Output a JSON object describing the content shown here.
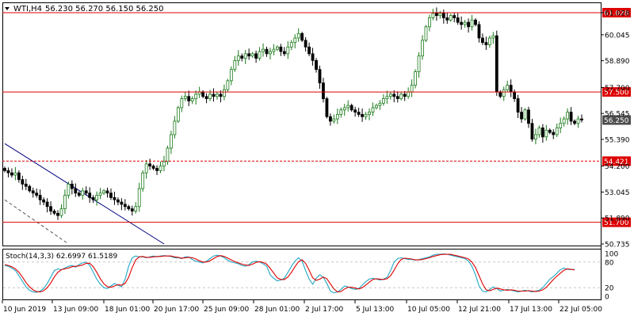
{
  "header": {
    "symbol_label": "WTI,H4",
    "ohlc_label": "56.230 56.270 56.150 56.250",
    "menu_icon": "triangle-down-icon"
  },
  "colors": {
    "background": "#ffffff",
    "grid_dash": "#c8c8c8",
    "candle_bull": "#1a7a1a",
    "candle_bear": "#000000",
    "candle_bull_fill": "#ffffff",
    "level_line": "#dd0000",
    "trend_line": "#000080",
    "price_tag_bg": "#4d4d4d",
    "level_tag_bg": "#dd0000",
    "stoch_main": "#21a8c4",
    "stoch_signal": "#dd0000"
  },
  "chart_data": [
    {
      "type": "candlestick",
      "title": "WTI,H4",
      "ylim": [
        50.735,
        61.2
      ],
      "y_ticks": [
        "61.028",
        "60.045",
        "58.890",
        "57.700",
        "56.545",
        "55.390",
        "54.200",
        "53.045",
        "51.890",
        "50.735"
      ],
      "x_ticks": [
        "10 Jun 2019",
        "13 Jun 09:00",
        "18 Jun 01:00",
        "20 Jun 17:00",
        "25 Jun 09:00",
        "28 Jun 01:00",
        "2 Jul 17:00",
        "5 Jul 13:00",
        "10 Jul 05:00",
        "12 Jul 21:00",
        "17 Jul 13:00",
        "22 Jul 05:00"
      ],
      "current_price": "56.250",
      "horizontal_levels": [
        {
          "label": "61.028",
          "value": 61.028,
          "style": "solid"
        },
        {
          "label": "57.500",
          "value": 57.5,
          "style": "solid"
        },
        {
          "label": "54.421",
          "value": 54.421,
          "style": "dashed"
        },
        {
          "label": "51.700",
          "value": 51.7,
          "style": "solid"
        }
      ],
      "trend_lines": [
        {
          "style": "solid",
          "from": {
            "bar": 0,
            "price": 55.2
          },
          "to": {
            "bar": 45,
            "price": 50.735
          }
        },
        {
          "style": "dashed",
          "from": {
            "bar": 0,
            "price": 52.7
          },
          "to": {
            "bar": 18,
            "price": 50.735
          }
        }
      ],
      "closes": [
        54.0,
        53.9,
        53.8,
        53.9,
        53.6,
        53.4,
        53.3,
        53.1,
        53.0,
        52.9,
        52.7,
        52.6,
        52.4,
        52.2,
        52.1,
        52.0,
        52.3,
        52.9,
        53.4,
        53.2,
        53.0,
        52.9,
        53.1,
        53.0,
        52.8,
        52.7,
        52.9,
        53.0,
        53.1,
        53.0,
        52.8,
        52.7,
        52.6,
        52.5,
        52.4,
        52.3,
        52.2,
        52.4,
        53.2,
        53.9,
        54.3,
        54.2,
        54.1,
        54.0,
        54.2,
        54.4,
        55.0,
        55.6,
        56.2,
        56.8,
        57.2,
        57.3,
        57.1,
        57.2,
        57.4,
        57.5,
        57.3,
        57.2,
        57.4,
        57.3,
        57.4,
        57.3,
        57.6,
        58.0,
        58.5,
        58.9,
        59.1,
        59.0,
        59.2,
        59.1,
        59.2,
        59.0,
        59.3,
        59.4,
        59.2,
        59.3,
        59.4,
        59.5,
        59.3,
        59.2,
        59.5,
        59.7,
        59.9,
        60.1,
        59.8,
        59.5,
        59.2,
        58.9,
        58.5,
        57.9,
        57.2,
        56.4,
        56.2,
        56.3,
        56.5,
        56.7,
        56.8,
        56.9,
        56.7,
        56.6,
        56.5,
        56.4,
        56.5,
        56.6,
        56.8,
        56.9,
        57.0,
        57.2,
        57.3,
        57.4,
        57.3,
        57.2,
        57.4,
        57.3,
        57.5,
        57.8,
        58.4,
        59.1,
        59.8,
        60.4,
        60.8,
        61.0,
        60.9,
        61.0,
        60.8,
        60.7,
        60.9,
        60.8,
        60.6,
        60.5,
        60.6,
        60.4,
        60.7,
        60.5,
        59.9,
        59.7,
        59.6,
        59.9,
        60.0,
        57.5,
        57.3,
        57.6,
        57.8,
        57.5,
        57.2,
        56.6,
        56.3,
        56.7,
        56.1,
        55.4,
        55.6,
        55.9,
        55.5,
        55.8,
        55.7,
        55.6,
        55.9,
        56.1,
        56.3,
        56.6,
        56.2,
        56.1,
        56.3,
        56.25
      ]
    },
    {
      "type": "line",
      "title": "Stoch(14,3,3) 62.6997 61.5189",
      "ylim": [
        0,
        100
      ],
      "y_ticks": [
        "100",
        "80",
        "20",
        "0"
      ],
      "series": [
        {
          "name": "Main",
          "values": [
            72,
            70,
            66,
            60,
            48,
            35,
            22,
            14,
            10,
            9,
            12,
            18,
            30,
            45,
            60,
            64,
            62,
            66,
            70,
            72,
            68,
            74,
            78,
            80,
            72,
            56,
            40,
            28,
            20,
            18,
            24,
            30,
            26,
            22,
            40,
            70,
            90,
            94,
            92,
            92,
            90,
            92,
            94,
            92,
            94,
            95,
            94,
            93,
            90,
            90,
            88,
            92,
            92,
            86,
            82,
            80,
            78,
            82,
            88,
            94,
            96,
            94,
            90,
            84,
            80,
            78,
            76,
            72,
            70,
            74,
            80,
            82,
            80,
            76,
            70,
            50,
            42,
            36,
            38,
            42,
            56,
            70,
            82,
            90,
            82,
            60,
            40,
            28,
            42,
            50,
            44,
            30,
            12,
            8,
            10,
            16,
            24,
            22,
            18,
            16,
            18,
            26,
            34,
            40,
            42,
            40,
            38,
            40,
            44,
            60,
            80,
            88,
            90,
            88,
            86,
            86,
            84,
            86,
            88,
            90,
            92,
            96,
            98,
            98,
            99,
            98,
            96,
            94,
            92,
            90,
            88,
            82,
            70,
            50,
            24,
            12,
            10,
            16,
            22,
            18,
            12,
            14,
            16,
            14,
            12,
            10,
            12,
            14,
            12,
            10,
            12,
            14,
            20,
            30,
            40,
            46,
            54,
            62,
            66,
            63,
            62,
            62.7
          ]
        },
        {
          "name": "Signal",
          "values": [
            74,
            72,
            69,
            64,
            56,
            45,
            32,
            22,
            15,
            11,
            10,
            13,
            20,
            31,
            45,
            56,
            62,
            64,
            66,
            69,
            70,
            71,
            73,
            77,
            77,
            69,
            56,
            41,
            29,
            22,
            21,
            24,
            27,
            26,
            30,
            44,
            67,
            85,
            92,
            93,
            91,
            91,
            92,
            93,
            93,
            94,
            94,
            94,
            92,
            91,
            89,
            90,
            91,
            90,
            87,
            83,
            80,
            80,
            83,
            88,
            93,
            95,
            93,
            89,
            85,
            81,
            78,
            75,
            73,
            72,
            75,
            79,
            81,
            79,
            75,
            65,
            54,
            43,
            39,
            39,
            45,
            56,
            69,
            81,
            85,
            77,
            61,
            43,
            37,
            40,
            45,
            41,
            29,
            17,
            10,
            11,
            17,
            21,
            21,
            19,
            17,
            20,
            26,
            33,
            39,
            41,
            40,
            39,
            41,
            48,
            61,
            76,
            86,
            89,
            88,
            87,
            85,
            85,
            86,
            88,
            90,
            93,
            95,
            97,
            98,
            98,
            98,
            96,
            94,
            92,
            90,
            87,
            80,
            67,
            48,
            29,
            15,
            13,
            16,
            19,
            17,
            15,
            14,
            15,
            14,
            12,
            12,
            12,
            13,
            12,
            11,
            12,
            15,
            21,
            30,
            39,
            47,
            54,
            61,
            64,
            63,
            61.5
          ]
        }
      ]
    }
  ]
}
